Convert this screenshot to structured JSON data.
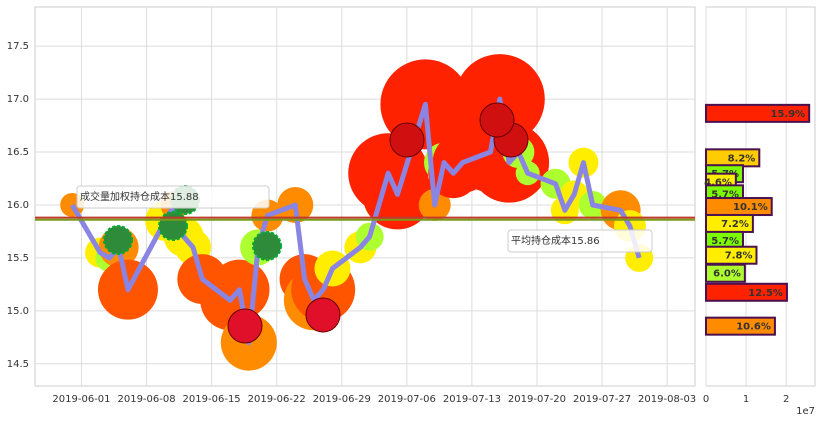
{
  "chart_data": [
    {
      "type": "line",
      "x": [
        "2019-05-31",
        "2019-06-03",
        "2019-06-04",
        "2019-06-05",
        "2019-06-06",
        "2019-06-10",
        "2019-06-11",
        "2019-06-12",
        "2019-06-13",
        "2019-06-14",
        "2019-06-17",
        "2019-06-18",
        "2019-06-19",
        "2019-06-20",
        "2019-06-21",
        "2019-06-24",
        "2019-06-25",
        "2019-06-26",
        "2019-06-27",
        "2019-06-28",
        "2019-07-01",
        "2019-07-02",
        "2019-07-03",
        "2019-07-04",
        "2019-07-05",
        "2019-07-08",
        "2019-07-09",
        "2019-07-10",
        "2019-07-11",
        "2019-07-12",
        "2019-07-15",
        "2019-07-16",
        "2019-07-17",
        "2019-07-18",
        "2019-07-19",
        "2019-07-22",
        "2019-07-23",
        "2019-07-24",
        "2019-07-25",
        "2019-07-26",
        "2019-07-29",
        "2019-07-30",
        "2019-07-31"
      ],
      "series": [
        {
          "color": "#8a84e2",
          "values": [
            16.0,
            15.55,
            15.5,
            15.6,
            15.2,
            15.85,
            16.0,
            15.7,
            15.6,
            15.3,
            15.1,
            15.2,
            14.7,
            15.6,
            15.9,
            16.0,
            15.3,
            15.1,
            15.2,
            15.4,
            15.6,
            15.7,
            16.0,
            16.3,
            16.1,
            16.95,
            16.0,
            16.4,
            16.3,
            16.4,
            16.5,
            17.0,
            16.4,
            16.5,
            16.3,
            16.2,
            15.95,
            16.1,
            16.4,
            16.0,
            15.95,
            15.8,
            15.5
          ]
        }
      ],
      "bubble_sizes": [
        12,
        15,
        14,
        20,
        30,
        20,
        14,
        20,
        18,
        25,
        30,
        30,
        28,
        18,
        16,
        18,
        25,
        30,
        32,
        18,
        16,
        14,
        14,
        40,
        35,
        45,
        16,
        20,
        25,
        30,
        40,
        45,
        40,
        16,
        12,
        15,
        14,
        14,
        15,
        14,
        20,
        16,
        14
      ],
      "bubble_colors": [
        "#ff8c00",
        "#ffee00",
        "#adff2f",
        "#ff8c00",
        "#ff5500",
        "#ffee00",
        "#ff8c00",
        "#ffee00",
        "#ffee00",
        "#ff5500",
        "#ff5500",
        "#ff5500",
        "#ff8c00",
        "#adff2f",
        "#ff8c00",
        "#ff8c00",
        "#ff5500",
        "#ff8c00",
        "#ff5500",
        "#ffee00",
        "#ffee00",
        "#adff2f",
        "#adff2f",
        "#ff2200",
        "#ff2200",
        "#ff2200",
        "#ff8c00",
        "#adff2f",
        "#ff2200",
        "#ff2200",
        "#ff2200",
        "#ff2200",
        "#ff2200",
        "#adff2f",
        "#adff2f",
        "#adff2f",
        "#ffee00",
        "#ffee00",
        "#ffee00",
        "#adff2f",
        "#ff8c00",
        "#ffee00",
        "#ffee00"
      ],
      "xlim": [
        "2019-05-27",
        "2019-08-06"
      ],
      "xticks": [
        "2019-06-01",
        "2019-06-08",
        "2019-06-15",
        "2019-06-22",
        "2019-06-29",
        "2019-07-06",
        "2019-07-13",
        "2019-07-20",
        "2019-07-27",
        "2019-08-03"
      ],
      "ylim": [
        14.29,
        17.87
      ],
      "yticks": [
        14.5,
        15.0,
        15.5,
        16.0,
        16.5,
        17.0,
        17.5
      ],
      "yticks_labels": [
        "14.5",
        "15.0",
        "15.5",
        "16.0",
        "16.5",
        "17.0",
        "17.5"
      ],
      "grid": true,
      "hlines": [
        {
          "value": 15.88,
          "color": "#c0392b",
          "label": "成交量加权持仓成本15.88"
        },
        {
          "value": 15.86,
          "color": "#7a9a1a",
          "label": "平均持仓成本15.86"
        }
      ]
    },
    {
      "type": "barh",
      "prices": [
        16.87,
        16.45,
        16.3,
        16.22,
        16.11,
        15.99,
        15.83,
        15.67,
        15.53,
        15.36,
        15.18,
        14.86
      ],
      "values": [
        25750000,
        13300000,
        9230000,
        7450000,
        9230000,
        16400000,
        11700000,
        9230000,
        12600000,
        9700000,
        20200000,
        17200000
      ],
      "share_labels": [
        "15.9%",
        "8.2%",
        "5.7%",
        "4.6%",
        "5.7%",
        "10.1%",
        "7.2%",
        "5.7%",
        "7.8%",
        "6.0%",
        "12.5%",
        "10.6%"
      ],
      "colors": [
        "#ff2200",
        "#ffcc00",
        "#7cfc00",
        "#ffee00",
        "#7cfc00",
        "#ff8c00",
        "#ffee00",
        "#7cfc00",
        "#ffee00",
        "#adff2f",
        "#ff2200",
        "#ff8c00"
      ],
      "xlim": [
        0,
        27200000
      ],
      "xticks": [
        {
          "value": 0,
          "label": "0"
        },
        {
          "value": 10000000,
          "label": "1"
        },
        {
          "value": 20000000,
          "label": "2"
        }
      ],
      "x_offset_label": "1e7"
    }
  ]
}
